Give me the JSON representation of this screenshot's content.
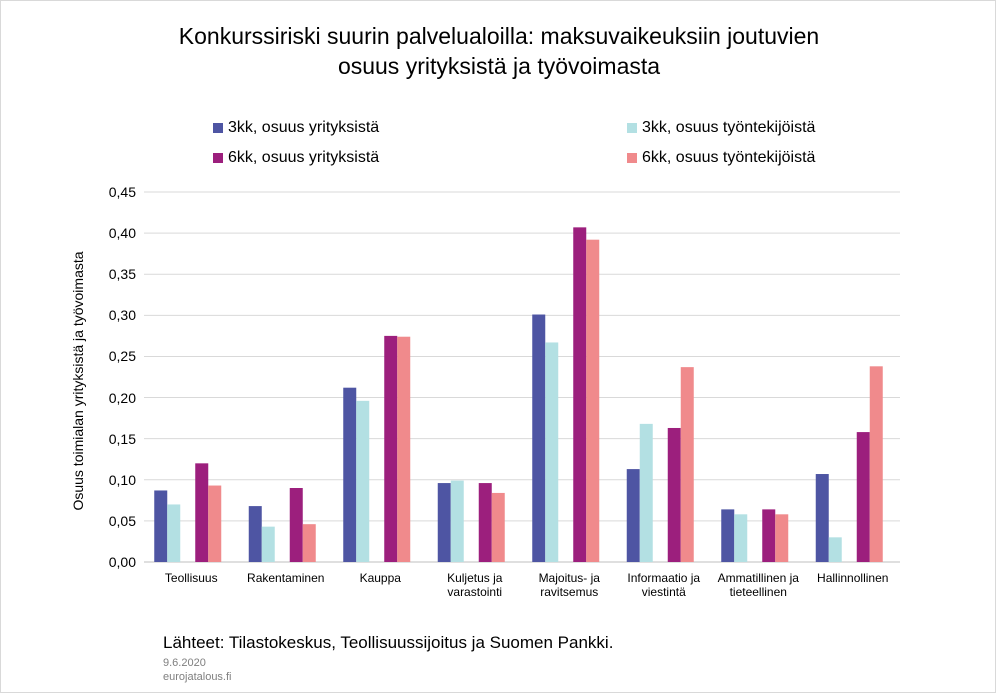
{
  "chart_data": {
    "type": "bar",
    "title": "Konkurssiriski suurin palvelualoilla: maksuvaikeuksiin joutuvien\nosuus yrityksistä ja työvoimasta",
    "y_label": "Osuus toimialan yrityksistä ja työvoimasta",
    "categories": [
      "Teollisuus",
      "Rakentaminen",
      "Kauppa",
      "Kuljetus ja\nvarastointi",
      "Majoitus- ja\nravitsemus",
      "Informaatio ja\nviestintä",
      "Ammatillinen ja\ntieteellinen",
      "Hallinnollinen"
    ],
    "series": [
      {
        "name": "3kk, osuus yrityksistä",
        "color": "#4e55a3",
        "values": [
          0.087,
          0.068,
          0.212,
          0.096,
          0.301,
          0.113,
          0.064,
          0.107
        ]
      },
      {
        "name": "3kk, osuus työntekijöistä",
        "color": "#b3e0e3",
        "values": [
          0.07,
          0.043,
          0.196,
          0.099,
          0.267,
          0.168,
          0.058,
          0.03
        ]
      },
      {
        "name": "6kk, osuus yrityksistä",
        "color": "#9c1f7d",
        "values": [
          0.12,
          0.09,
          0.275,
          0.096,
          0.407,
          0.163,
          0.064,
          0.158
        ]
      },
      {
        "name": "6kk, osuus työntekijöistä",
        "color": "#f08a8c",
        "values": [
          0.093,
          0.046,
          0.274,
          0.084,
          0.392,
          0.237,
          0.058,
          0.238
        ]
      }
    ],
    "ylim": [
      0,
      0.45
    ],
    "yticks": [
      {
        "value": 0,
        "label": "0,00"
      },
      {
        "value": 0.05,
        "label": "0,05"
      },
      {
        "value": 0.1,
        "label": "0,10"
      },
      {
        "value": 0.15,
        "label": "0,15"
      },
      {
        "value": 0.2,
        "label": "0,20"
      },
      {
        "value": 0.25,
        "label": "0,25"
      },
      {
        "value": 0.3,
        "label": "0,30"
      },
      {
        "value": 0.35,
        "label": "0,35"
      },
      {
        "value": 0.4,
        "label": "0,40"
      },
      {
        "value": 0.45,
        "label": "0,45"
      }
    ],
    "grid": true,
    "source": "Lähteet: Tilastokeskus, Teollisuussijoitus  ja Suomen Pankki.",
    "date": "9.6.2020",
    "site": "eurojatalous.fi"
  }
}
